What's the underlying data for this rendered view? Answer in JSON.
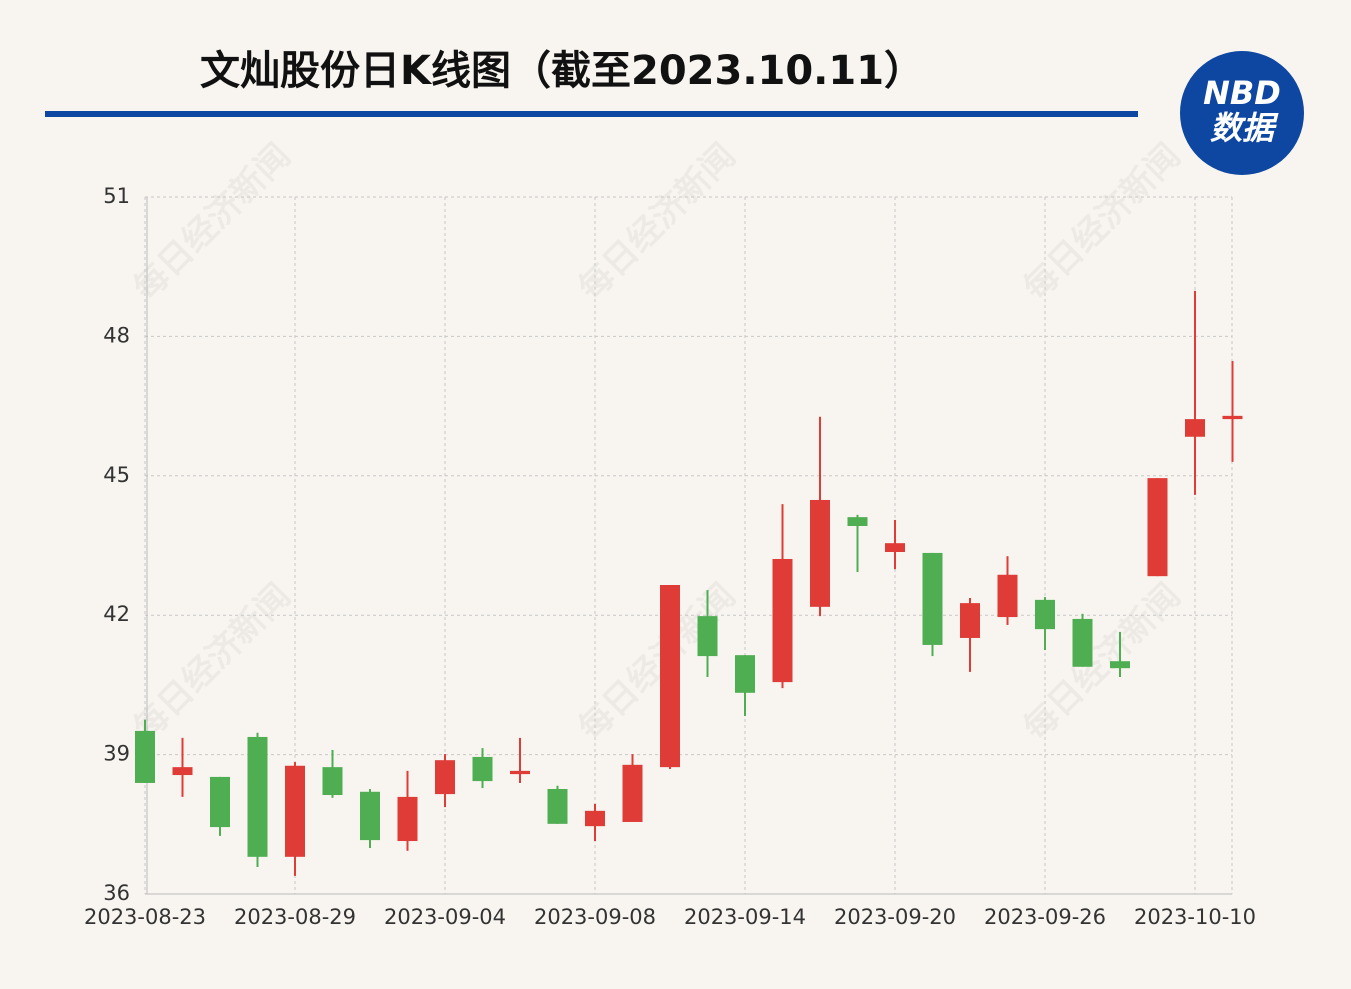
{
  "chart_data": {
    "type": "candlestick",
    "title": "文灿股份日K线图（截至2023.10.11）",
    "logo": {
      "top": "NBD",
      "bottom": "数据"
    },
    "watermark": "每日经济新闻",
    "categories": [
      "2023-08-23",
      null,
      null,
      null,
      "2023-08-29",
      null,
      null,
      null,
      "2023-09-04",
      null,
      null,
      null,
      "2023-09-08",
      null,
      null,
      null,
      "2023-09-14",
      null,
      null,
      null,
      "2023-09-20",
      null,
      null,
      null,
      "2023-09-26",
      null,
      null,
      null,
      "2023-10-10",
      null
    ],
    "open": [
      39.51,
      38.56,
      38.52,
      39.38,
      36.8,
      38.73,
      38.2,
      37.14,
      38.15,
      38.95,
      38.58,
      38.26,
      37.46,
      37.55,
      38.73,
      41.98,
      41.14,
      40.56,
      42.18,
      44.11,
      43.36,
      43.34,
      41.51,
      41.96,
      42.33,
      41.92,
      41.01,
      42.84,
      45.84,
      46.22
    ],
    "high": [
      39.75,
      39.36,
      38.52,
      39.47,
      38.84,
      39.1,
      38.26,
      38.65,
      39.01,
      39.14,
      39.36,
      38.33,
      37.94,
      39.01,
      42.65,
      42.54,
      41.14,
      44.39,
      46.27,
      44.16,
      44.05,
      43.34,
      42.37,
      43.27,
      42.39,
      42.03,
      41.64,
      44.95,
      48.98,
      47.47
    ],
    "low": [
      38.39,
      38.09,
      37.25,
      36.58,
      36.39,
      38.07,
      36.99,
      36.93,
      37.87,
      38.28,
      38.39,
      37.51,
      37.14,
      37.55,
      38.69,
      40.67,
      39.83,
      40.43,
      41.98,
      42.93,
      42.99,
      41.12,
      40.78,
      41.79,
      41.25,
      40.89,
      40.67,
      42.84,
      44.59,
      45.3
    ],
    "close": [
      38.39,
      38.73,
      37.44,
      36.8,
      38.76,
      38.13,
      37.16,
      38.09,
      38.88,
      38.43,
      38.65,
      37.51,
      37.79,
      38.78,
      42.65,
      41.12,
      40.33,
      43.21,
      44.48,
      43.92,
      43.55,
      41.36,
      42.26,
      42.87,
      41.7,
      40.89,
      40.86,
      44.95,
      46.22,
      46.29
    ],
    "up_color": "#e03c37",
    "down_color": "#4fad52",
    "ylim": [
      36,
      51
    ],
    "yticks": [
      36,
      39,
      42,
      45,
      48,
      51
    ],
    "grid": true
  }
}
